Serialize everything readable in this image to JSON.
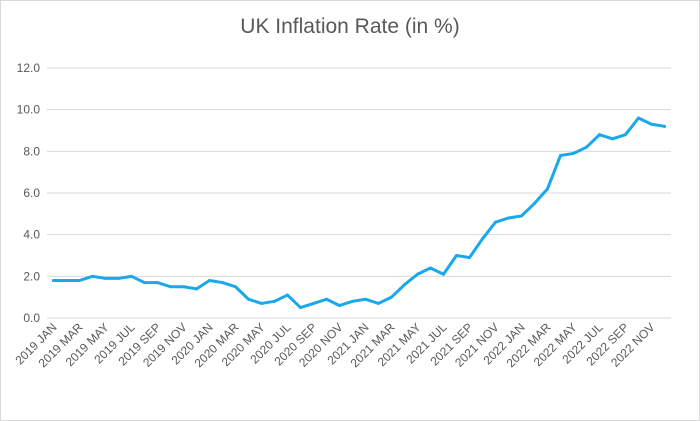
{
  "chart_data": {
    "type": "line",
    "title": "UK Inflation Rate (in %)",
    "xlabel": "",
    "ylabel": "",
    "ylim": [
      0,
      12
    ],
    "yticks": [
      "0.0",
      "2.0",
      "4.0",
      "6.0",
      "8.0",
      "10.0",
      "12.0"
    ],
    "grid": true,
    "legend": "none",
    "colors": {
      "line": "#1aa7ec",
      "grid": "#d9d9d9",
      "text": "#595959"
    },
    "x": [
      "2019 JAN",
      "2019 FEB",
      "2019 MAR",
      "2019 APR",
      "2019 MAY",
      "2019 JUN",
      "2019 JUL",
      "2019 AUG",
      "2019 SEP",
      "2019 OCT",
      "2019 NOV",
      "2019 DEC",
      "2020 JAN",
      "2020 FEB",
      "2020 MAR",
      "2020 APR",
      "2020 MAY",
      "2020 JUN",
      "2020 JUL",
      "2020 AUG",
      "2020 SEP",
      "2020 OCT",
      "2020 NOV",
      "2020 DEC",
      "2021 JAN",
      "2021 FEB",
      "2021 MAR",
      "2021 APR",
      "2021 MAY",
      "2021 JUN",
      "2021 JUL",
      "2021 AUG",
      "2021 SEP",
      "2021 OCT",
      "2021 NOV",
      "2021 DEC",
      "2022 JAN",
      "2022 FEB",
      "2022 MAR",
      "2022 APR",
      "2022 MAY",
      "2022 JUN",
      "2022 JUL",
      "2022 AUG",
      "2022 SEP",
      "2022 OCT",
      "2022 NOV",
      "2022 DEC"
    ],
    "xticks_shown": [
      "2019 JAN",
      "2019 MAR",
      "2019 MAY",
      "2019 JUL",
      "2019 SEP",
      "2019 NOV",
      "2020 JAN",
      "2020 MAR",
      "2020 MAY",
      "2020 JUL",
      "2020 SEP",
      "2020 NOV",
      "2021 JAN",
      "2021 MAR",
      "2021 MAY",
      "2021 JUL",
      "2021 SEP",
      "2021 NOV",
      "2022 JAN",
      "2022 MAR",
      "2022 MAY",
      "2022 JUL",
      "2022 SEP",
      "2022 NOV"
    ],
    "series": [
      {
        "values": [
          1.8,
          1.8,
          1.8,
          2.0,
          1.9,
          1.9,
          2.0,
          1.7,
          1.7,
          1.5,
          1.5,
          1.4,
          1.8,
          1.7,
          1.5,
          0.9,
          0.7,
          0.8,
          1.1,
          0.5,
          0.7,
          0.9,
          0.6,
          0.8,
          0.9,
          0.7,
          1.0,
          1.6,
          2.1,
          2.4,
          2.1,
          3.0,
          2.9,
          3.8,
          4.6,
          4.8,
          4.9,
          5.5,
          6.2,
          7.8,
          7.9,
          8.2,
          8.8,
          8.6,
          8.8,
          9.6,
          9.3,
          9.2
        ]
      }
    ]
  }
}
